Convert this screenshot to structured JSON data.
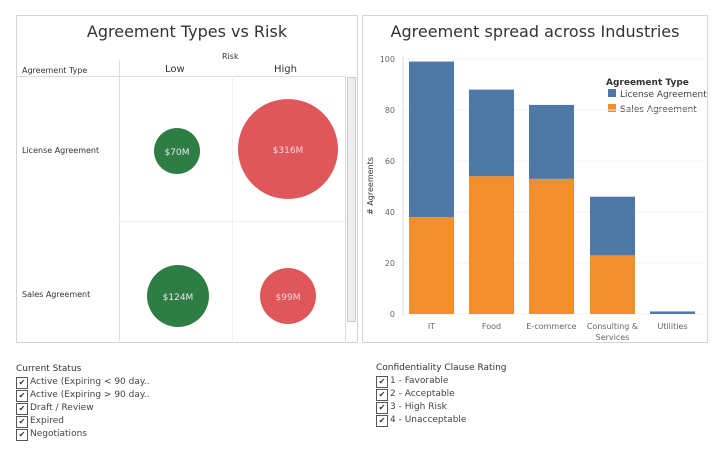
{
  "chart_data": [
    {
      "type": "bubble-matrix",
      "title": "Agreement Types vs Risk",
      "column_header": "Risk",
      "row_header": "Agreement Type",
      "columns": [
        "Low",
        "High"
      ],
      "rows": [
        "License Agreement",
        "Sales Agreement"
      ],
      "cells": [
        {
          "row": "License Agreement",
          "column": "Low",
          "value": 70,
          "label": "$70M"
        },
        {
          "row": "License Agreement",
          "column": "High",
          "value": 316,
          "label": "$316M"
        },
        {
          "row": "Sales Agreement",
          "column": "Low",
          "value": 124,
          "label": "$124M"
        },
        {
          "row": "Sales Agreement",
          "column": "High",
          "value": 99,
          "label": "$99M"
        }
      ],
      "colors": {
        "Low": "#2e7d45",
        "High": "#e0575b"
      }
    },
    {
      "type": "bar",
      "stacked": true,
      "title": "Agreement spread across Industries",
      "xlabel": "",
      "ylabel": "# Agreements",
      "ylim": [
        0,
        100
      ],
      "yticks": [
        0,
        20,
        40,
        60,
        80,
        100
      ],
      "categories": [
        "IT",
        "Food",
        "E-commerce",
        "Consulting & Services",
        "Utilities"
      ],
      "legend_title": "Agreement Type",
      "legend_position": "top-right",
      "series": [
        {
          "name": "Sales Agreement",
          "color": "#f28e2b",
          "values": [
            38,
            54,
            53,
            23,
            0
          ]
        },
        {
          "name": "License Agreement",
          "color": "#4e79a7",
          "values": [
            61,
            34,
            29,
            23,
            1
          ]
        }
      ]
    }
  ],
  "filters": {
    "status": {
      "title": "Current Status",
      "items": [
        "Active (Expiring < 90 day..",
        "Active (Expiring > 90 day..",
        "Draft / Review",
        "Expired",
        "Negotiations"
      ]
    },
    "confidentiality": {
      "title": "Confidentiality Clause Rating",
      "items": [
        "1 - Favorable",
        "2 - Acceptable",
        "3 - High Risk",
        "4 - Unacceptable"
      ]
    },
    "check_glyph": "✔"
  }
}
